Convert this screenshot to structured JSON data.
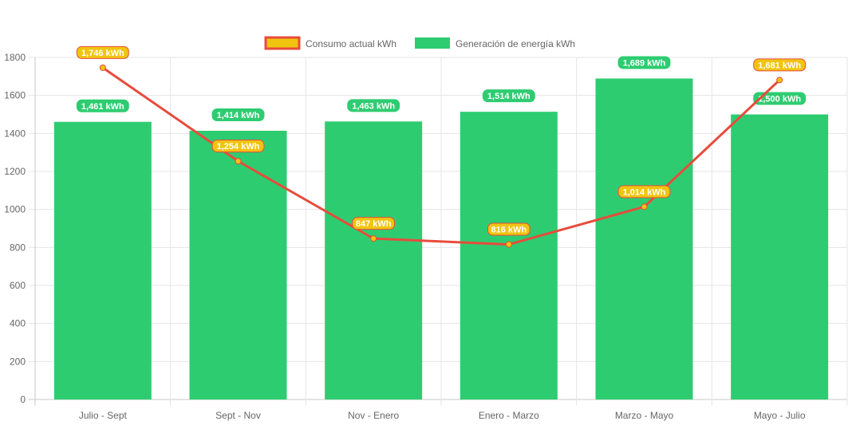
{
  "chart_data": {
    "type": "bar",
    "title": "",
    "xlabel": "",
    "ylabel": "",
    "ylim": [
      0,
      1800
    ],
    "yticks": [
      0,
      200,
      400,
      600,
      800,
      1000,
      1200,
      1400,
      1600,
      1800
    ],
    "grid": true,
    "legend_placement": "top-center",
    "categories": [
      "Julio - Sept",
      "Sept - Nov",
      "Nov - Enero",
      "Enero - Marzo",
      "Marzo - Mayo",
      "Mayo - Julio"
    ],
    "series": [
      {
        "name": "Consumo actual kWh",
        "type": "line",
        "values": [
          1746,
          1254,
          847,
          816,
          1014,
          1681
        ],
        "labels": [
          "1,746 kWh",
          "1,254 kWh",
          "847 kWh",
          "816 kWh",
          "1,014 kWh",
          "1,681 kWh"
        ],
        "color": "#E74C3C",
        "fill": "#F1C40F"
      },
      {
        "name": "Generación de energía kWh",
        "type": "bar",
        "values": [
          1461,
          1414,
          1463,
          1514,
          1689,
          1500
        ],
        "labels": [
          "1,461 kWh",
          "1,414 kWh",
          "1,463 kWh",
          "1,514 kWh",
          "1,689 kWh",
          "1,500 kWh"
        ],
        "color": "#2ECC71"
      }
    ]
  }
}
